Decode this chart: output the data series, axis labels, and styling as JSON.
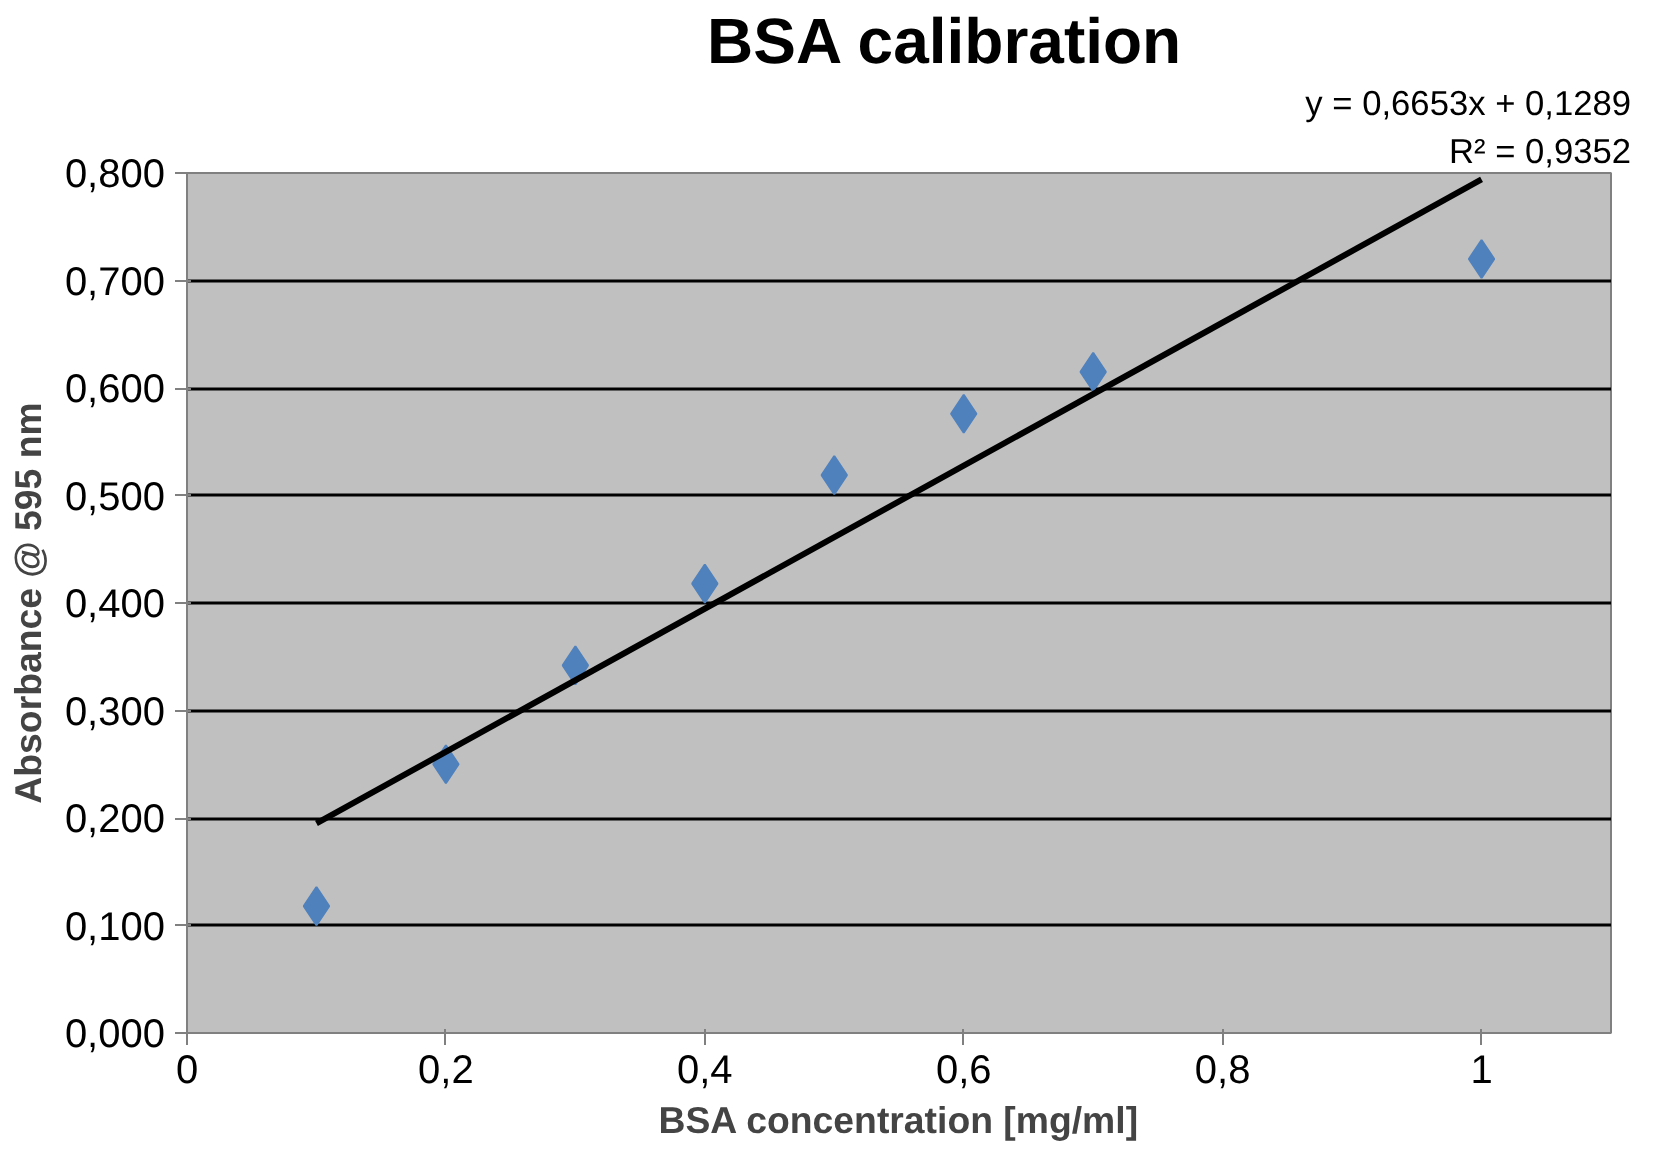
{
  "chart_data": {
    "type": "scatter",
    "title": "BSA calibration",
    "xlabel": "BSA concentration [mg/ml]",
    "ylabel": "Absorbance @ 595 nm",
    "x": [
      0.1,
      0.2,
      0.3,
      0.4,
      0.5,
      0.6,
      0.7,
      1.0
    ],
    "series": [
      {
        "color": "#4f81bd",
        "values": [
          0.118,
          0.25,
          0.342,
          0.418,
          0.519,
          0.576,
          0.615,
          0.72
        ]
      },
      {
        "type": "line",
        "marker": "none",
        "color": "#000000",
        "x": [
          0.1,
          1.0
        ],
        "values": [
          0.195,
          0.794
        ]
      }
    ],
    "annotations": [
      "y = 0,6653x + 0,1289",
      "R² = 0,9352"
    ],
    "xlim": [
      0,
      1.1
    ],
    "ylim": [
      0,
      0.8
    ],
    "xticks": [
      0,
      {
        "value": 0.2,
        "label": "0,2"
      },
      {
        "value": 0.4,
        "label": "0,4"
      },
      {
        "value": 0.6,
        "label": "0,6"
      },
      {
        "value": 0.8,
        "label": "0,8"
      },
      1
    ],
    "yticks": [
      {
        "value": 0,
        "label": "0,000"
      },
      {
        "value": 0.1,
        "label": "0,100"
      },
      {
        "value": 0.2,
        "label": "0,200"
      },
      {
        "value": 0.3,
        "label": "0,300"
      },
      {
        "value": 0.4,
        "label": "0,400"
      },
      {
        "value": 0.5,
        "label": "0,500"
      },
      {
        "value": 0.6,
        "label": "0,600"
      },
      {
        "value": 0.7,
        "label": "0,700"
      },
      {
        "value": 0.8,
        "label": "0,800"
      }
    ],
    "grid": "y",
    "marker": "diamond"
  }
}
